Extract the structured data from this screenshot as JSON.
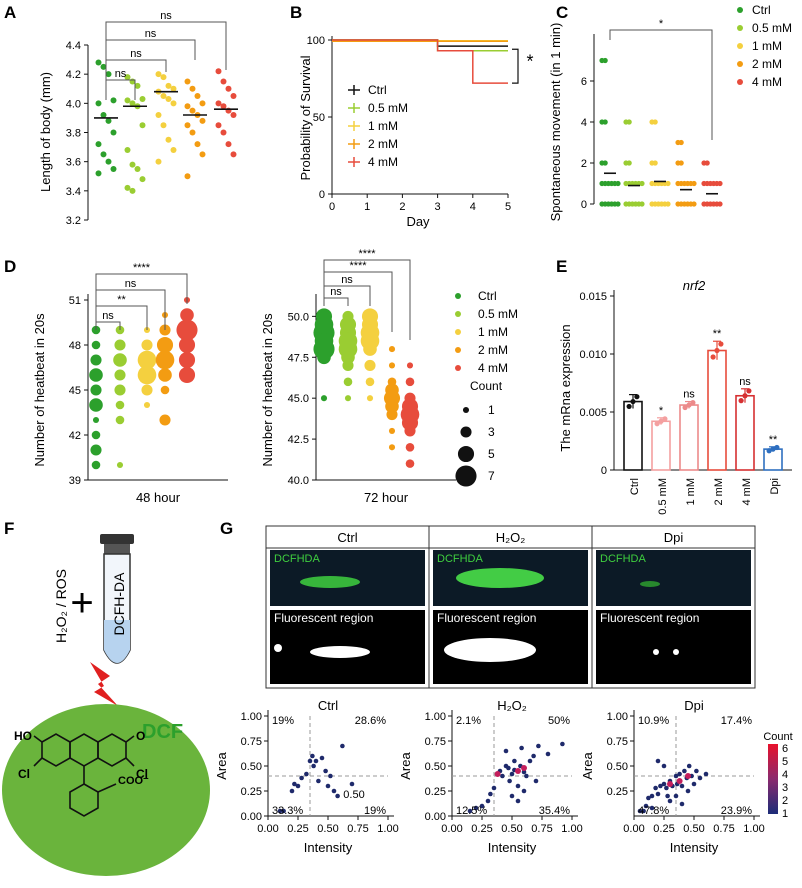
{
  "panels": {
    "A": {
      "letter": "A"
    },
    "B": {
      "letter": "B"
    },
    "C": {
      "letter": "C"
    },
    "D": {
      "letter": "D"
    },
    "E": {
      "letter": "E"
    },
    "F": {
      "letter": "F"
    },
    "G": {
      "letter": "G"
    }
  },
  "colors": {
    "ctrl": "#2ca02c",
    "c05": "#9acd32",
    "c1": "#f4d03f",
    "c2": "#f39c12",
    "c4": "#e74c3c",
    "dpi": "#2e6fc0",
    "black": "#111111"
  },
  "legend_labels": [
    "Ctrl",
    "0.5 mM",
    "1 mM",
    "2 mM",
    "4 mM"
  ],
  "chart_data": [
    {
      "id": "A",
      "type": "scatter",
      "ylabel": "Length of body (mm)",
      "ylim": [
        3.2,
        4.4
      ],
      "yticks": [
        "3.2",
        "3.4",
        "3.6",
        "3.8",
        "4.0",
        "4.2",
        "4.4"
      ],
      "groups": [
        "Ctrl",
        "0.5 mM",
        "1 mM",
        "2 mM",
        "4 mM"
      ],
      "means": [
        3.9,
        3.98,
        4.08,
        3.92,
        3.96
      ],
      "points": [
        [
          4.28,
          4.25,
          4.2,
          4.02,
          4.0,
          3.92,
          3.88,
          3.8,
          3.72,
          3.65,
          3.6,
          3.55,
          3.52
        ],
        [
          4.18,
          4.15,
          4.12,
          4.03,
          4.02,
          4.0,
          3.98,
          3.85,
          3.68,
          3.58,
          3.55,
          3.48,
          3.42,
          3.4
        ],
        [
          4.2,
          4.18,
          4.12,
          4.1,
          4.08,
          4.05,
          4.03,
          4.0,
          3.92,
          3.85,
          3.75,
          3.68,
          3.6
        ],
        [
          4.15,
          4.1,
          4.05,
          4.0,
          3.98,
          3.95,
          3.92,
          3.88,
          3.85,
          3.8,
          3.72,
          3.65,
          3.5
        ],
        [
          4.22,
          4.15,
          4.1,
          4.05,
          4.0,
          3.98,
          3.95,
          3.92,
          3.85,
          3.8,
          3.72,
          3.65
        ]
      ],
      "sig": [
        "ns",
        "ns",
        "ns",
        "ns"
      ]
    },
    {
      "id": "B",
      "type": "line",
      "xlabel": "Day",
      "ylabel": "Probability of Survival",
      "xlim": [
        0,
        5
      ],
      "ylim": [
        0,
        100
      ],
      "xticks": [
        "0",
        "1",
        "2",
        "3",
        "4",
        "5"
      ],
      "yticks": [
        "0",
        "50",
        "100"
      ],
      "series": [
        {
          "name": "Ctrl",
          "final": 96
        },
        {
          "name": "0.5 mM",
          "final": 93
        },
        {
          "name": "1 mM",
          "final": 100
        },
        {
          "name": "2 mM",
          "final": 100
        },
        {
          "name": "4 mM",
          "final": 72
        }
      ],
      "sig": "*"
    },
    {
      "id": "C",
      "type": "scatter",
      "ylabel": "Spontaneous movement (in 1 min)",
      "ylim": [
        0,
        8
      ],
      "yticks": [
        "0",
        "2",
        "4",
        "6"
      ],
      "groups": [
        "Ctrl",
        "0.5 mM",
        "1 mM",
        "2 mM",
        "4 mM"
      ],
      "means": [
        1.5,
        0.9,
        1.1,
        0.7,
        0.5
      ],
      "levels": [
        [
          0,
          1,
          2,
          4,
          7
        ],
        [
          0,
          1,
          2,
          4
        ],
        [
          0,
          1,
          2,
          4
        ],
        [
          0,
          1,
          2,
          3
        ],
        [
          0,
          1,
          2
        ]
      ],
      "sig": "*"
    },
    {
      "id": "D1",
      "type": "scatter",
      "xlabel": "48 hour",
      "ylabel": "Number of heatbeat in 20s",
      "ylim": [
        39,
        51
      ],
      "yticks": [
        "39",
        "42",
        "45",
        "48",
        "51"
      ],
      "bubbles": [
        [
          [
            40,
            2
          ],
          [
            41,
            3
          ],
          [
            42,
            2
          ],
          [
            43,
            1
          ],
          [
            44,
            4
          ],
          [
            45,
            3
          ],
          [
            46,
            4
          ],
          [
            47,
            3
          ],
          [
            48,
            2
          ],
          [
            49,
            2
          ]
        ],
        [
          [
            40,
            1
          ],
          [
            43,
            2
          ],
          [
            44,
            2
          ],
          [
            45,
            3
          ],
          [
            46,
            3
          ],
          [
            47,
            4
          ],
          [
            48,
            3
          ],
          [
            49,
            2
          ]
        ],
        [
          [
            44,
            1
          ],
          [
            45,
            3
          ],
          [
            46,
            6
          ],
          [
            47,
            6
          ],
          [
            48,
            3
          ],
          [
            49,
            1
          ]
        ],
        [
          [
            43,
            3
          ],
          [
            45,
            2
          ],
          [
            46,
            4
          ],
          [
            47,
            6
          ],
          [
            48,
            5
          ],
          [
            49,
            3
          ],
          [
            50,
            1
          ]
        ],
        [
          [
            46,
            5
          ],
          [
            47,
            5
          ],
          [
            48,
            5
          ],
          [
            49,
            7
          ],
          [
            50,
            4
          ],
          [
            51,
            1
          ]
        ]
      ],
      "sig": [
        "ns",
        "**",
        "ns",
        "****"
      ]
    },
    {
      "id": "D2",
      "type": "scatter",
      "xlabel": "72 hour",
      "ylabel": "Number of heatbeat in 20s",
      "ylim": [
        40,
        51
      ],
      "yticks": [
        "40.0",
        "42.5",
        "45.0",
        "47.5",
        "50.0"
      ],
      "bubbles": [
        [
          [
            45,
            1
          ],
          [
            47.5,
            4
          ],
          [
            48,
            7
          ],
          [
            48.5,
            6
          ],
          [
            49,
            7
          ],
          [
            49.5,
            6
          ],
          [
            50,
            5
          ]
        ],
        [
          [
            45,
            1
          ],
          [
            46,
            2
          ],
          [
            47,
            3
          ],
          [
            47.5,
            4
          ],
          [
            48,
            6
          ],
          [
            48.5,
            6
          ],
          [
            49,
            5
          ],
          [
            49.5,
            5
          ],
          [
            50,
            3
          ]
        ],
        [
          [
            45,
            1
          ],
          [
            46,
            2
          ],
          [
            47,
            3
          ],
          [
            48,
            4
          ],
          [
            48.5,
            6
          ],
          [
            49,
            6
          ],
          [
            49.5,
            5
          ],
          [
            50,
            5
          ]
        ],
        [
          [
            42,
            1
          ],
          [
            43,
            1
          ],
          [
            44,
            3
          ],
          [
            44.5,
            4
          ],
          [
            45,
            5
          ],
          [
            45.5,
            4
          ],
          [
            46,
            2
          ],
          [
            47,
            1
          ],
          [
            48,
            1
          ]
        ],
        [
          [
            41,
            2
          ],
          [
            42,
            2
          ],
          [
            43,
            3
          ],
          [
            43.5,
            5
          ],
          [
            44,
            6
          ],
          [
            44.5,
            5
          ],
          [
            45,
            3
          ],
          [
            46,
            2
          ],
          [
            47,
            1
          ]
        ]
      ],
      "sig": [
        "ns",
        "ns",
        "****",
        "****"
      ],
      "count_legend": {
        "title": "Count",
        "values": [
          "1",
          "3",
          "5",
          "7"
        ]
      }
    },
    {
      "id": "E",
      "type": "bar",
      "title": "nrf2",
      "ylabel": "The mRna expression",
      "ylim": [
        0,
        0.015
      ],
      "yticks": [
        "0",
        "0.005",
        "0.010",
        "0.015"
      ],
      "categories": [
        "Ctrl",
        "0.5 mM",
        "1 mM",
        "2 mM",
        "4 mM",
        "Dpi"
      ],
      "values": [
        0.0059,
        0.0042,
        0.0056,
        0.0103,
        0.0064,
        0.0018
      ],
      "errors": [
        0.0006,
        0.0003,
        0.0003,
        0.0008,
        0.0006,
        0.0002
      ],
      "sig": [
        "",
        "*",
        "ns",
        "**",
        "ns",
        "**"
      ]
    },
    {
      "id": "G-ctrl",
      "type": "scatter",
      "title": "Ctrl",
      "xlabel": "Intensity",
      "ylabel": "Area",
      "xticks": [
        "0.00",
        "0.25",
        "0.50",
        "0.75",
        "1.00"
      ],
      "yticks": [
        "0.00",
        "0.25",
        "0.50",
        "0.75",
        "1.00"
      ],
      "quadrants": [
        "19%",
        "28.6%",
        "33.3%",
        "19%"
      ],
      "extra_label": "0.50",
      "points": [
        [
          0.1,
          0.05
        ],
        [
          0.13,
          0.05
        ],
        [
          0.2,
          0.25
        ],
        [
          0.22,
          0.32
        ],
        [
          0.25,
          0.3
        ],
        [
          0.28,
          0.38
        ],
        [
          0.32,
          0.42
        ],
        [
          0.35,
          0.55
        ],
        [
          0.37,
          0.6
        ],
        [
          0.38,
          0.5
        ],
        [
          0.4,
          0.55
        ],
        [
          0.42,
          0.35
        ],
        [
          0.45,
          0.58
        ],
        [
          0.48,
          0.45
        ],
        [
          0.5,
          0.3
        ],
        [
          0.52,
          0.4
        ],
        [
          0.55,
          0.25
        ],
        [
          0.58,
          0.2
        ],
        [
          0.62,
          0.7
        ],
        [
          0.7,
          0.32
        ]
      ]
    },
    {
      "id": "G-h2o2",
      "type": "scatter",
      "title": "H₂O₂",
      "xlabel": "Intensity",
      "ylabel": "Area",
      "xticks": [
        "0.00",
        "0.25",
        "0.50",
        "0.75",
        "1.00"
      ],
      "yticks": [
        "0.00",
        "0.25",
        "0.50",
        "0.75",
        "1.00"
      ],
      "quadrants": [
        "2.1%",
        "50%",
        "12.5%",
        "35.4%"
      ],
      "points": [
        [
          0.15,
          0.05
        ],
        [
          0.2,
          0.08
        ],
        [
          0.25,
          0.1
        ],
        [
          0.3,
          0.15
        ],
        [
          0.32,
          0.22
        ],
        [
          0.35,
          0.28
        ],
        [
          0.38,
          0.42
        ],
        [
          0.4,
          0.45
        ],
        [
          0.42,
          0.4
        ],
        [
          0.45,
          0.5
        ],
        [
          0.47,
          0.48
        ],
        [
          0.5,
          0.42
        ],
        [
          0.52,
          0.46
        ],
        [
          0.55,
          0.3
        ],
        [
          0.57,
          0.5
        ],
        [
          0.6,
          0.44
        ],
        [
          0.62,
          0.4
        ],
        [
          0.65,
          0.55
        ],
        [
          0.68,
          0.6
        ],
        [
          0.7,
          0.35
        ],
        [
          0.72,
          0.7
        ],
        [
          0.8,
          0.62
        ],
        [
          0.92,
          0.72
        ],
        [
          0.5,
          0.2
        ],
        [
          0.55,
          0.15
        ],
        [
          0.6,
          0.25
        ],
        [
          0.45,
          0.65
        ],
        [
          0.58,
          0.68
        ],
        [
          0.48,
          0.35
        ],
        [
          0.52,
          0.55
        ]
      ],
      "hot": [
        [
          0.38,
          0.42
        ],
        [
          0.55,
          0.45
        ],
        [
          0.6,
          0.48
        ]
      ]
    },
    {
      "id": "G-dpi",
      "type": "scatter",
      "title": "Dpi",
      "xlabel": "Intensity",
      "ylabel": "Area",
      "xticks": [
        "0.00",
        "0.25",
        "0.50",
        "0.75",
        "1.00"
      ],
      "yticks": [
        "0.25",
        "0.50",
        "0.75",
        "1.00"
      ],
      "quadrants": [
        "10.9%",
        "17.4%",
        "47.8%",
        "23.9%"
      ],
      "points": [
        [
          0.05,
          0.05
        ],
        [
          0.08,
          0.05
        ],
        [
          0.1,
          0.1
        ],
        [
          0.12,
          0.18
        ],
        [
          0.15,
          0.2
        ],
        [
          0.18,
          0.28
        ],
        [
          0.2,
          0.22
        ],
        [
          0.22,
          0.3
        ],
        [
          0.25,
          0.32
        ],
        [
          0.27,
          0.28
        ],
        [
          0.3,
          0.35
        ],
        [
          0.32,
          0.3
        ],
        [
          0.35,
          0.4
        ],
        [
          0.36,
          0.32
        ],
        [
          0.38,
          0.42
        ],
        [
          0.4,
          0.3
        ],
        [
          0.42,
          0.45
        ],
        [
          0.44,
          0.38
        ],
        [
          0.46,
          0.5
        ],
        [
          0.48,
          0.4
        ],
        [
          0.5,
          0.32
        ],
        [
          0.52,
          0.45
        ],
        [
          0.55,
          0.38
        ],
        [
          0.6,
          0.42
        ],
        [
          0.3,
          0.15
        ],
        [
          0.35,
          0.2
        ],
        [
          0.4,
          0.12
        ],
        [
          0.45,
          0.25
        ],
        [
          0.25,
          0.5
        ],
        [
          0.2,
          0.55
        ],
        [
          0.28,
          0.2
        ],
        [
          0.15,
          0.08
        ]
      ],
      "hot": [
        [
          0.3,
          0.32
        ],
        [
          0.38,
          0.35
        ],
        [
          0.45,
          0.4
        ]
      ],
      "count_legend": {
        "title": "Count",
        "values": [
          "6",
          "5",
          "4",
          "3",
          "2",
          "1"
        ]
      }
    }
  ],
  "panelF": {
    "tube_label": "DCFH-DA",
    "reactant": "H₂O₂ / ROS",
    "plus": "+",
    "product": "DCF",
    "atoms": {
      "ho": "HO",
      "o": "O",
      "cl1": "Cl",
      "cl2": "Cl",
      "coo": "COO⁻"
    }
  },
  "panelG_images": {
    "columns": [
      "Ctrl",
      "H₂O₂",
      "Dpi"
    ],
    "top_label": "DCFHDA",
    "bottom_label": "Fluorescent region"
  }
}
